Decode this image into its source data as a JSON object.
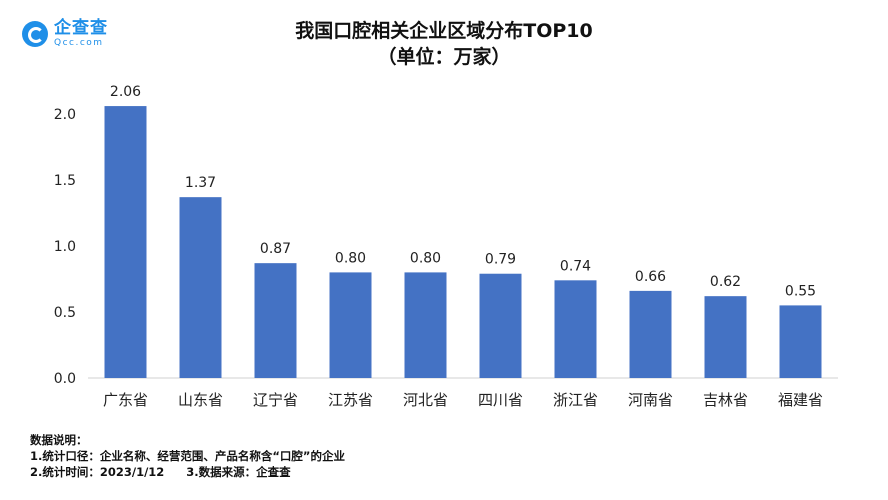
{
  "brand": {
    "name": "企查查",
    "domain": "Qcc.com",
    "logo_icon": "qcc-logo-icon",
    "accent": "#1f8fe8"
  },
  "chart_data": {
    "type": "bar",
    "title": "我国口腔相关企业区域分布TOP10",
    "subtitle": "（单位：万家）",
    "categories": [
      "广东省",
      "山东省",
      "辽宁省",
      "江苏省",
      "河北省",
      "四川省",
      "浙江省",
      "河南省",
      "吉林省",
      "福建省"
    ],
    "values": [
      2.06,
      1.37,
      0.87,
      0.8,
      0.8,
      0.79,
      0.74,
      0.66,
      0.62,
      0.55
    ],
    "value_labels": [
      "2.06",
      "1.37",
      "0.87",
      "0.80",
      "0.80",
      "0.79",
      "0.74",
      "0.66",
      "0.62",
      "0.55"
    ],
    "yticks": [
      "0.0",
      "0.5",
      "1.0",
      "1.5",
      "2.0"
    ],
    "ytick_values": [
      0,
      0.5,
      1.0,
      1.5,
      2.0
    ],
    "ylim": [
      0,
      2.2
    ],
    "xlabel": "",
    "ylabel": "",
    "grid": false,
    "legend": "none",
    "bar_color": "#4472c4"
  },
  "notes": {
    "heading": "数据说明：",
    "line1": "1.统计口径：企业名称、经营范围、产品名称含“口腔”的企业",
    "line2a": "2.统计时间：2023/1/12",
    "line2b": "3.数据来源：企查查"
  }
}
